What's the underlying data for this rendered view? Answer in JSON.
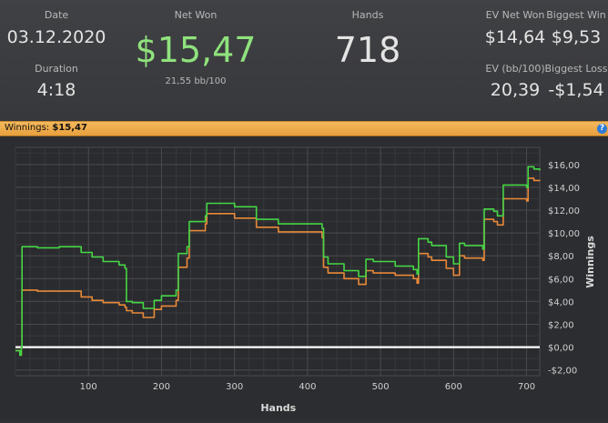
{
  "stats": {
    "date_label": "Date",
    "date_value": "03.12.2020",
    "duration_label": "Duration",
    "duration_value": "4:18",
    "net_won_label": "Net Won",
    "net_won_value": "$15,47",
    "bb100_value": "21,55 bb/100",
    "hands_label": "Hands",
    "hands_value": "718",
    "ev_net_won_label": "EV Net Won",
    "ev_net_won_value": "$14,64",
    "biggest_win_label": "Biggest Win",
    "biggest_win_value": "$9,53",
    "ev_bb100_label": "EV (bb/100)",
    "ev_bb100_value": "20,39",
    "biggest_loss_label": "Biggest Loss",
    "biggest_loss_value": "-$1,54"
  },
  "winnings_bar": {
    "label": "Winnings:",
    "value": "$15,47",
    "help_glyph": "?"
  },
  "colors": {
    "net_won": "#8fe27d",
    "winnings_line": "#45d645",
    "ev_line": "#e8893a",
    "zero_line": "#ffffff",
    "winnings_bar": "#f0ad4e"
  },
  "chart_data": {
    "type": "line",
    "xlabel": "Hands",
    "ylabel": "Winnings",
    "xlim": [
      0,
      718
    ],
    "ylim": [
      -2.5,
      17.5
    ],
    "xticks": [
      100,
      200,
      300,
      400,
      500,
      600,
      700
    ],
    "xtick_labels": [
      "100",
      "200",
      "300",
      "400",
      "500",
      "600",
      "700"
    ],
    "yticks": [
      16,
      14,
      12,
      10,
      8,
      6,
      4,
      2,
      0,
      -2
    ],
    "ytick_labels": [
      "$16,00",
      "$14,00",
      "$12,00",
      "$10,00",
      "$8,00",
      "$6,00",
      "$4,00",
      "$2,00",
      "$0,00",
      "-$2,00"
    ],
    "grid": true,
    "series": [
      {
        "color": "#45d645",
        "x": [
          0,
          6,
          8,
          9,
          30,
          60,
          90,
          105,
          120,
          142,
          150,
          152,
          160,
          175,
          190,
          200,
          220,
          223,
          235,
          238,
          260,
          262,
          300,
          330,
          360,
          420,
          422,
          428,
          450,
          470,
          480,
          490,
          520,
          545,
          550,
          552,
          565,
          570,
          590,
          600,
          608,
          615,
          640,
          642,
          655,
          660,
          668,
          700,
          702,
          710,
          712,
          718
        ],
        "values": [
          -0.3,
          -0.7,
          0.0,
          8.8,
          8.7,
          8.8,
          8.3,
          7.9,
          7.5,
          7.2,
          6.9,
          4.0,
          3.9,
          3.4,
          4.1,
          4.5,
          5.0,
          8.2,
          8.8,
          11.0,
          11.5,
          12.6,
          12.3,
          11.2,
          10.8,
          10.4,
          7.9,
          7.3,
          6.7,
          6.2,
          7.7,
          7.5,
          7.1,
          6.8,
          6.4,
          9.5,
          9.2,
          8.9,
          7.9,
          7.3,
          9.1,
          8.9,
          8.6,
          12.1,
          11.9,
          11.5,
          14.2,
          14.0,
          15.8,
          15.6,
          15.6,
          15.47
        ]
      },
      {
        "color": "#e8893a",
        "x": [
          0,
          6,
          8,
          9,
          30,
          60,
          90,
          105,
          120,
          142,
          150,
          152,
          160,
          175,
          190,
          200,
          220,
          223,
          235,
          238,
          260,
          262,
          300,
          330,
          360,
          420,
          422,
          428,
          450,
          470,
          480,
          490,
          520,
          545,
          550,
          552,
          565,
          570,
          590,
          600,
          608,
          615,
          640,
          642,
          655,
          660,
          668,
          700,
          702,
          710,
          712,
          718
        ],
        "values": [
          -0.3,
          -0.7,
          0.0,
          5.0,
          4.9,
          4.9,
          4.4,
          4.1,
          3.9,
          3.7,
          3.5,
          3.2,
          3.0,
          2.6,
          3.3,
          3.6,
          4.1,
          7.0,
          7.8,
          10.2,
          10.8,
          11.7,
          11.3,
          10.5,
          10.1,
          9.6,
          7.0,
          6.5,
          6.0,
          5.5,
          6.7,
          6.5,
          6.3,
          6.0,
          5.6,
          8.2,
          7.9,
          7.6,
          6.9,
          6.3,
          8.0,
          7.8,
          7.6,
          11.2,
          11.0,
          10.7,
          13.0,
          12.8,
          14.8,
          14.6,
          14.6,
          14.64
        ]
      }
    ]
  }
}
